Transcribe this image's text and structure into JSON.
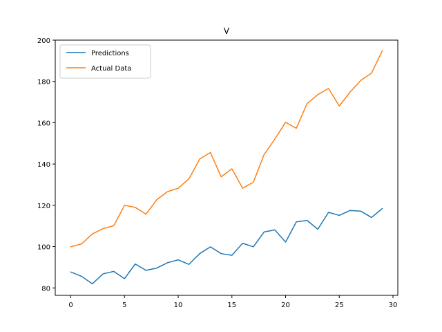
{
  "chart_data": {
    "type": "line",
    "title": "V",
    "xlabel": "",
    "ylabel": "",
    "xlim": [
      -1.45,
      30.45
    ],
    "ylim": [
      76.4,
      200
    ],
    "xticks": [
      0,
      5,
      10,
      15,
      20,
      25,
      30
    ],
    "yticks": [
      80,
      100,
      120,
      140,
      160,
      180,
      200
    ],
    "grid": false,
    "legend_position": "top-left",
    "x": [
      0,
      1,
      2,
      3,
      4,
      5,
      6,
      7,
      8,
      9,
      10,
      11,
      12,
      13,
      14,
      15,
      16,
      17,
      18,
      19,
      20,
      21,
      22,
      23,
      24,
      25,
      26,
      27,
      28,
      29
    ],
    "series": [
      {
        "name": "Predictions",
        "color": "#1f77b4",
        "values": [
          87.7,
          85.6,
          82.0,
          86.8,
          88.0,
          84.5,
          91.6,
          88.5,
          89.6,
          92.2,
          93.6,
          91.4,
          96.6,
          99.9,
          96.6,
          95.8,
          101.6,
          99.9,
          107.1,
          108.1,
          102.2,
          112.0,
          112.7,
          108.4,
          116.6,
          115.1,
          117.5,
          117.2,
          114.1,
          118.4
        ]
      },
      {
        "name": "Actual Data",
        "color": "#ff7f0e",
        "values": [
          99.9,
          101.3,
          106.1,
          108.7,
          110.1,
          120.0,
          119.0,
          115.7,
          122.7,
          126.6,
          128.3,
          132.8,
          142.4,
          145.6,
          133.8,
          137.7,
          128.3,
          131.2,
          144.6,
          152.1,
          160.2,
          157.3,
          169.2,
          173.6,
          176.6,
          168.1,
          174.8,
          180.5,
          184.0,
          194.8
        ]
      }
    ]
  }
}
